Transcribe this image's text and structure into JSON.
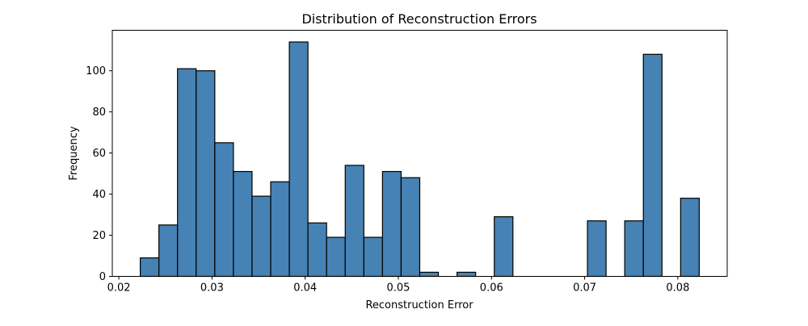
{
  "chart_data": {
    "type": "bar",
    "title": "Distribution of Reconstruction Errors",
    "xlabel": "Reconstruction Error",
    "ylabel": "Frequency",
    "xlim": [
      0.0193,
      0.0853
    ],
    "ylim": [
      0,
      119.7
    ],
    "xticks": [
      0.02,
      0.03,
      0.04,
      0.05,
      0.06,
      0.07,
      0.08
    ],
    "xtick_labels": [
      "0.02",
      "0.03",
      "0.04",
      "0.05",
      "0.06",
      "0.07",
      "0.08"
    ],
    "yticks": [
      0,
      20,
      40,
      60,
      80,
      100
    ],
    "ytick_labels": [
      "0",
      "20",
      "40",
      "60",
      "80",
      "100"
    ],
    "bin_start": 0.0223,
    "bin_width": 0.002,
    "values": [
      9,
      25,
      101,
      100,
      65,
      51,
      39,
      46,
      114,
      26,
      19,
      54,
      19,
      51,
      48,
      2,
      0,
      2,
      0,
      29,
      0,
      0,
      0,
      0,
      27,
      0,
      27,
      108,
      0,
      38
    ],
    "grid": false,
    "colors": {
      "bar_fill": "#4682b4",
      "bar_edge": "#000000"
    }
  }
}
